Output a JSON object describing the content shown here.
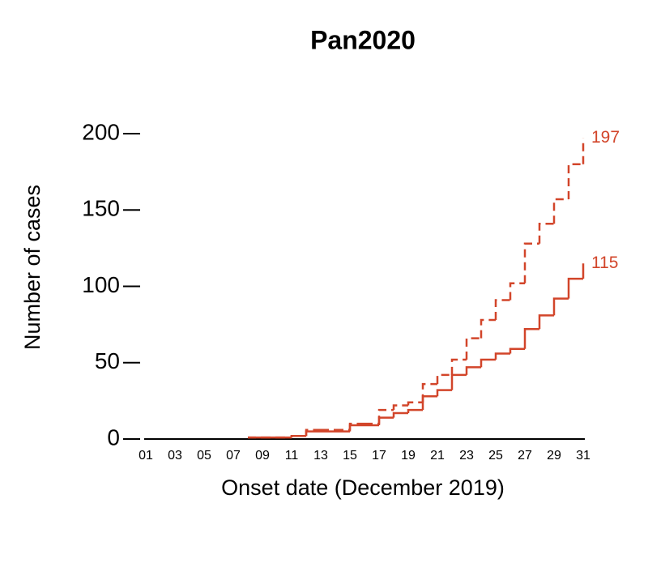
{
  "chart_data": {
    "type": "step",
    "title": "Pan2020",
    "xlabel": "Onset date (December 2019)",
    "ylabel": "Number of cases",
    "x": [
      8,
      9,
      10,
      11,
      12,
      13,
      14,
      15,
      16,
      17,
      18,
      19,
      20,
      21,
      22,
      23,
      24,
      25,
      26,
      27,
      28,
      29,
      30,
      31
    ],
    "series": [
      {
        "color": "#d2452a",
        "dash": true,
        "values": [
          1,
          1,
          1,
          2,
          6,
          6,
          6,
          10,
          10,
          19,
          22,
          24,
          36,
          42,
          52,
          66,
          78,
          91,
          102,
          128,
          141,
          157,
          180,
          197
        ]
      },
      {
        "color": "#d2452a",
        "dash": false,
        "values": [
          1,
          1,
          1,
          2,
          5,
          5,
          5,
          9,
          9,
          14,
          17,
          19,
          28,
          32,
          42,
          47,
          52,
          56,
          59,
          72,
          81,
          92,
          105,
          115
        ]
      }
    ],
    "xlim": [
      1,
      31
    ],
    "xticks": [
      {
        "value": 1,
        "label": "01"
      },
      {
        "value": 3,
        "label": "03"
      },
      {
        "value": 5,
        "label": "05"
      },
      {
        "value": 7,
        "label": "07"
      },
      {
        "value": 9,
        "label": "09"
      },
      11,
      13,
      15,
      17,
      19,
      21,
      23,
      25,
      27,
      29,
      31
    ],
    "ylim": [
      0,
      200
    ],
    "yticks": [
      0,
      50,
      100,
      150,
      200
    ]
  }
}
